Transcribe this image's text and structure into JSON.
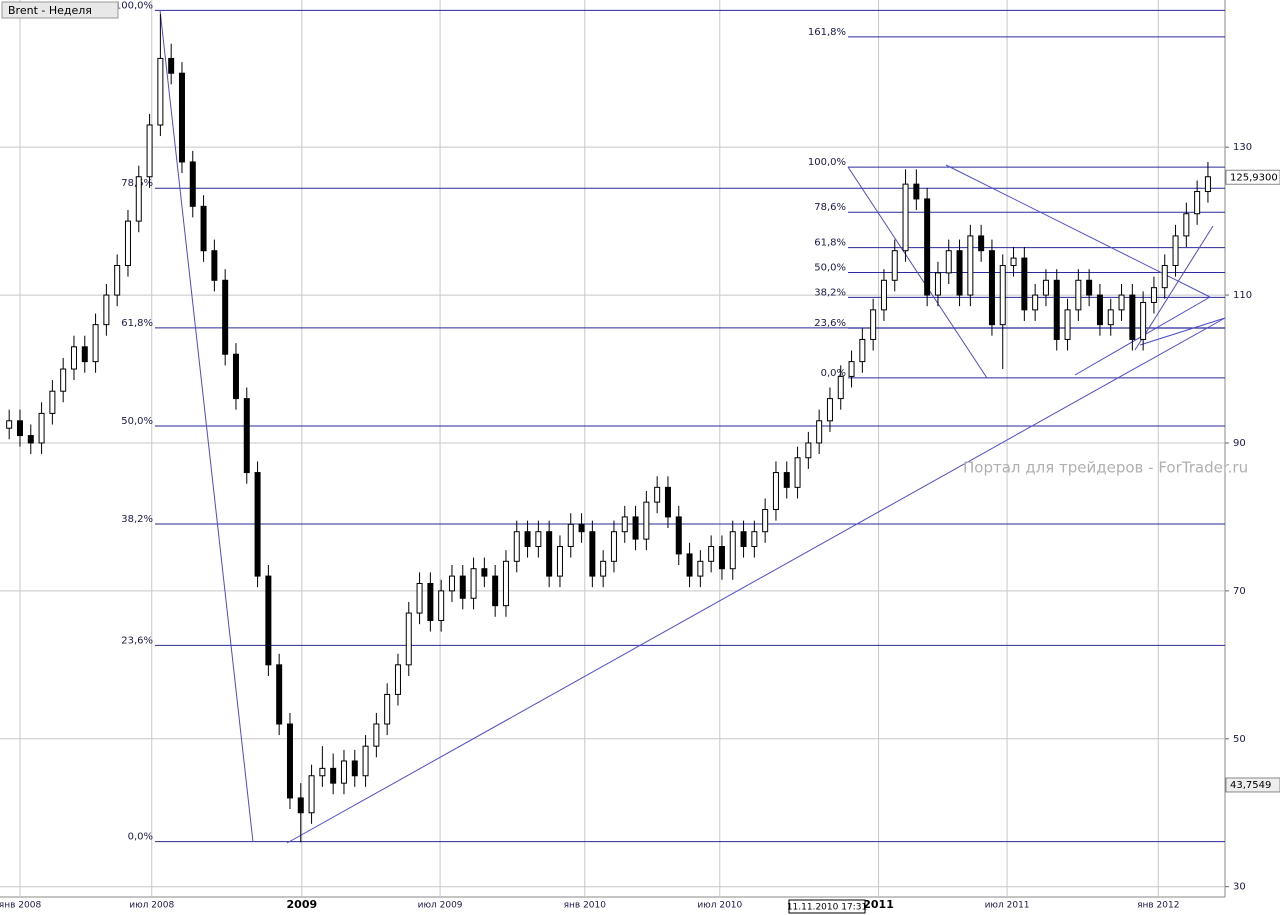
{
  "chart_data": {
    "type": "candlestick",
    "title": "Brent - Неделя",
    "watermark": "Портал для трейдеров - ForTrader.ru",
    "cursor_date": "11.11.2010 17:31",
    "xlim": [
      -0.85,
      112.58
    ],
    "ylim": [
      28.2,
      149.9
    ],
    "yticks": [
      130,
      110,
      90,
      70,
      50,
      30
    ],
    "xticks": [
      {
        "value": 1,
        "label": "янв 2008"
      },
      {
        "value": 13.2,
        "label": "июл 2008"
      },
      {
        "value": 27.1,
        "label": "2009"
      },
      {
        "value": 39.9,
        "label": "июл 2009"
      },
      {
        "value": 53.3,
        "label": "янв 2010"
      },
      {
        "value": 65.8,
        "label": "июл 2010"
      },
      {
        "value": 80.5,
        "label": "2011"
      },
      {
        "value": 92.4,
        "label": "июл 2011"
      },
      {
        "value": 106.4,
        "label": "янв 2012"
      }
    ],
    "grid": true,
    "up_color": "#ffffff",
    "down_color": "#000000",
    "last_price": {
      "value": 125.93,
      "label": "125,9300"
    },
    "cursor_price": {
      "value": 43.7549,
      "label": "43,7549"
    },
    "fib_left": {
      "low": 36.1,
      "high": 148.5,
      "levels": [
        {
          "value": 100,
          "label": "100,0%"
        },
        {
          "value": 78.6,
          "label": "78,6%"
        },
        {
          "value": 61.8,
          "label": "61,8%"
        },
        {
          "value": 50,
          "label": "50,0%"
        },
        {
          "value": 38.2,
          "label": "38,2%"
        },
        {
          "value": 23.6,
          "label": "23,6%"
        },
        {
          "value": 0,
          "label": "0,0%"
        }
      ]
    },
    "fib_right": {
      "low": 98.8,
      "high": 127.3,
      "levels": [
        {
          "value": 161.8,
          "label": "161,8%"
        },
        {
          "value": 100,
          "label": "100,0%"
        },
        {
          "value": 78.6,
          "label": "78,6%"
        },
        {
          "value": 61.8,
          "label": "61,8%"
        },
        {
          "value": 50,
          "label": "50,0%"
        },
        {
          "value": 38.2,
          "label": "38,2%"
        },
        {
          "value": 23.6,
          "label": "23,6%"
        },
        {
          "value": 0,
          "label": "0,0%"
        }
      ]
    },
    "candles": [
      [
        92,
        94.5,
        90.5,
        93
      ],
      [
        93,
        94.5,
        89.5,
        91
      ],
      [
        91,
        92.5,
        88.5,
        90
      ],
      [
        90,
        95.5,
        88.5,
        94
      ],
      [
        94,
        98.5,
        92.5,
        97
      ],
      [
        97,
        101.5,
        95.5,
        100
      ],
      [
        100,
        104.5,
        98.5,
        103
      ],
      [
        103,
        104.5,
        99.5,
        101
      ],
      [
        101,
        107.5,
        99.5,
        106
      ],
      [
        106,
        111.5,
        104.5,
        110
      ],
      [
        110,
        115.5,
        108.5,
        114
      ],
      [
        114,
        121.5,
        112.5,
        120
      ],
      [
        120,
        127.5,
        118.5,
        126
      ],
      [
        126,
        134.5,
        124.5,
        133
      ],
      [
        133,
        148,
        131.5,
        142
      ],
      [
        142,
        144,
        138.5,
        140
      ],
      [
        140,
        141.5,
        126.5,
        128
      ],
      [
        128,
        129.5,
        120.5,
        122
      ],
      [
        122,
        123.5,
        114.5,
        116
      ],
      [
        116,
        117.5,
        110.5,
        112
      ],
      [
        112,
        113.5,
        100.5,
        102
      ],
      [
        102,
        103.5,
        94.5,
        96
      ],
      [
        96,
        97.5,
        84.5,
        86
      ],
      [
        86,
        87.5,
        70.5,
        72
      ],
      [
        72,
        73.5,
        58.5,
        60
      ],
      [
        60,
        61.5,
        50.5,
        52
      ],
      [
        52,
        53.5,
        40.5,
        42
      ],
      [
        42,
        44,
        36,
        40
      ],
      [
        40,
        46.5,
        38.5,
        45
      ],
      [
        45,
        49,
        43.5,
        46
      ],
      [
        46,
        48,
        42.5,
        44
      ],
      [
        44,
        48.5,
        42.5,
        47
      ],
      [
        47,
        48.5,
        43.5,
        45
      ],
      [
        45,
        50.5,
        43.5,
        49
      ],
      [
        49,
        53.5,
        47.5,
        52
      ],
      [
        52,
        57.5,
        50.5,
        56
      ],
      [
        56,
        61.5,
        54.5,
        60
      ],
      [
        60,
        68.5,
        58.5,
        67
      ],
      [
        67,
        72.5,
        65.5,
        71
      ],
      [
        71,
        72.5,
        64.5,
        66
      ],
      [
        66,
        71.5,
        64.5,
        70
      ],
      [
        70,
        73.5,
        68.5,
        72
      ],
      [
        72,
        73.5,
        67.5,
        69
      ],
      [
        69,
        74.5,
        67.5,
        73
      ],
      [
        73,
        74.5,
        70.5,
        72
      ],
      [
        72,
        73.5,
        66.5,
        68
      ],
      [
        68,
        75.5,
        66.5,
        74
      ],
      [
        74,
        79.5,
        72.5,
        78
      ],
      [
        78,
        79.5,
        74.5,
        76
      ],
      [
        76,
        79.5,
        74.5,
        78
      ],
      [
        78,
        79.5,
        70.5,
        72
      ],
      [
        72,
        77.5,
        70.5,
        76
      ],
      [
        76,
        80.5,
        74.5,
        79
      ],
      [
        79,
        80.5,
        76.5,
        78
      ],
      [
        78,
        79.5,
        70.5,
        72
      ],
      [
        72,
        75.5,
        70.5,
        74
      ],
      [
        74,
        79.5,
        72.5,
        78
      ],
      [
        78,
        81.5,
        76.5,
        80
      ],
      [
        80,
        81.5,
        75.5,
        77
      ],
      [
        77,
        83.5,
        75.5,
        82
      ],
      [
        82,
        85.5,
        80.5,
        84
      ],
      [
        84,
        85.5,
        78.5,
        80
      ],
      [
        80,
        81.5,
        73.5,
        75
      ],
      [
        75,
        76.5,
        70.5,
        72
      ],
      [
        72,
        75.5,
        70.5,
        74
      ],
      [
        74,
        77.5,
        72.5,
        76
      ],
      [
        76,
        77.5,
        71.5,
        73
      ],
      [
        73,
        79.5,
        71.5,
        78
      ],
      [
        78,
        79.5,
        74.5,
        76
      ],
      [
        76,
        79.5,
        74.5,
        78
      ],
      [
        78,
        82.5,
        76.5,
        81
      ],
      [
        81,
        87.5,
        79.5,
        86
      ],
      [
        86,
        87.5,
        82.5,
        84
      ],
      [
        84,
        89.5,
        82.5,
        88
      ],
      [
        88,
        91.5,
        86.5,
        90
      ],
      [
        90,
        94.5,
        88.5,
        93
      ],
      [
        93,
        97.5,
        91.5,
        96
      ],
      [
        96,
        100.5,
        94.5,
        99
      ],
      [
        99,
        102.5,
        97.5,
        101
      ],
      [
        101,
        105.5,
        99.5,
        104
      ],
      [
        104,
        109.5,
        102.5,
        108
      ],
      [
        108,
        113.5,
        106.5,
        112
      ],
      [
        112,
        117.5,
        110.5,
        116
      ],
      [
        116,
        127,
        114.5,
        125
      ],
      [
        125,
        127,
        121.5,
        123
      ],
      [
        123,
        124.5,
        108.5,
        110
      ],
      [
        110,
        114.5,
        108.5,
        113
      ],
      [
        113,
        117.5,
        111.5,
        116
      ],
      [
        116,
        117.5,
        108.5,
        110
      ],
      [
        110,
        119.5,
        108.5,
        118
      ],
      [
        118,
        119.5,
        114.5,
        116
      ],
      [
        116,
        117.5,
        104.5,
        106
      ],
      [
        106,
        115.5,
        100,
        114
      ],
      [
        114,
        116.5,
        112.5,
        115
      ],
      [
        115,
        116.5,
        106.5,
        108
      ],
      [
        108,
        111.5,
        106.5,
        110
      ],
      [
        110,
        113.5,
        108.5,
        112
      ],
      [
        112,
        113.5,
        102.5,
        104
      ],
      [
        104,
        109.5,
        102.5,
        108
      ],
      [
        108,
        113.5,
        106.5,
        112
      ],
      [
        112,
        113.5,
        108.5,
        110
      ],
      [
        110,
        111.5,
        104.5,
        106
      ],
      [
        106,
        109.5,
        104.5,
        108
      ],
      [
        108,
        111.5,
        106.5,
        110
      ],
      [
        110,
        111.5,
        102.5,
        104
      ],
      [
        104,
        110.5,
        102.5,
        109
      ],
      [
        109,
        112.5,
        107.5,
        111
      ],
      [
        111,
        115.5,
        109.5,
        114
      ],
      [
        114,
        119.5,
        112.5,
        118
      ],
      [
        118,
        122.5,
        116.5,
        121
      ],
      [
        121,
        125.5,
        119.5,
        124
      ],
      [
        124,
        128,
        122.5,
        126
      ]
    ]
  }
}
